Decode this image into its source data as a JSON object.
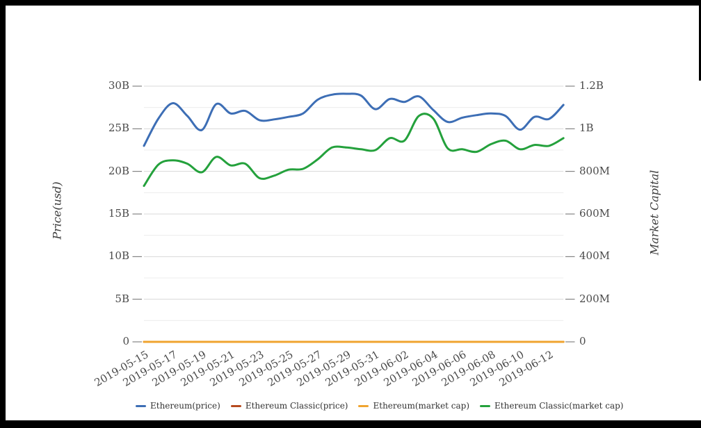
{
  "chart": {
    "title": "",
    "left_axis": {
      "title": "Price(usd)",
      "tick_labels_top_to_bottom": [
        "30B",
        "25B",
        "20B",
        "15B",
        "10B",
        "5B",
        "0"
      ],
      "max_billions": 30,
      "min": 0
    },
    "right_axis": {
      "title": "Market Capital",
      "tick_labels_top_to_bottom": [
        "1.2B",
        "1B",
        "800M",
        "600M",
        "400M",
        "200M",
        "0"
      ],
      "max_millions": 1200,
      "min": 0
    },
    "x_axis": {
      "tick_labels": [
        "2019-05-15",
        "2019-05-17",
        "2019-05-19",
        "2019-05-21",
        "2019-05-23",
        "2019-05-25",
        "2019-05-27",
        "2019-05-29",
        "2019-05-31",
        "2019-06-02",
        "2019-06-04",
        "2019-06-06",
        "2019-06-08",
        "2019-06-10",
        "2019-06-12"
      ]
    },
    "legend": [
      {
        "label": "Ethereum(price)",
        "color": "#3d6eb5"
      },
      {
        "label": "Ethereum Classic(price)",
        "color": "#b64a1e"
      },
      {
        "label": "Ethereum(market cap)",
        "color": "#f0a42f"
      },
      {
        "label": "Ethereum Classic(market cap)",
        "color": "#24a13c"
      }
    ],
    "colors": {
      "grid_major": "#d8d8d8",
      "grid_minor": "#ececec",
      "tick_mark": "#6b6b6b",
      "tick_text": "#4a4a4a"
    }
  },
  "chart_data": {
    "type": "line",
    "smooth": true,
    "grid": true,
    "legend_position": "bottom",
    "x": [
      "2019-05-15",
      "2019-05-16",
      "2019-05-17",
      "2019-05-18",
      "2019-05-19",
      "2019-05-20",
      "2019-05-21",
      "2019-05-22",
      "2019-05-23",
      "2019-05-24",
      "2019-05-25",
      "2019-05-26",
      "2019-05-27",
      "2019-05-28",
      "2019-05-29",
      "2019-05-30",
      "2019-05-31",
      "2019-06-01",
      "2019-06-02",
      "2019-06-03",
      "2019-06-04",
      "2019-06-05",
      "2019-06-06",
      "2019-06-07",
      "2019-06-08",
      "2019-06-09",
      "2019-06-10",
      "2019-06-11",
      "2019-06-12",
      "2019-06-13"
    ],
    "left_axis_range_billions": [
      0,
      30
    ],
    "right_axis_range_millions": [
      0,
      1200
    ],
    "series": [
      {
        "name": "Ethereum(price)",
        "color": "#3d6eb5",
        "axis": "left",
        "unit": "billions_usd",
        "values": [
          23.0,
          26.2,
          28.0,
          26.5,
          24.85,
          27.9,
          26.8,
          27.1,
          26.0,
          26.1,
          26.4,
          26.8,
          28.4,
          29.0,
          29.1,
          28.9,
          27.3,
          28.5,
          28.15,
          28.8,
          27.2,
          25.8,
          26.3,
          26.6,
          26.8,
          26.5,
          24.9,
          26.4,
          26.15,
          27.8
        ]
      },
      {
        "name": "Ethereum Classic(price)",
        "color": "#b64a1e",
        "axis": "left",
        "unit": "billions_usd",
        "values": [
          0,
          0,
          0,
          0,
          0,
          0,
          0,
          0,
          0,
          0,
          0,
          0,
          0,
          0,
          0,
          0,
          0,
          0,
          0,
          0,
          0,
          0,
          0,
          0,
          0,
          0,
          0,
          0,
          0,
          0
        ]
      },
      {
        "name": "Ethereum(market cap)",
        "color": "#f0a42f",
        "axis": "left",
        "unit": "billions_usd",
        "values": [
          0,
          0,
          0,
          0,
          0,
          0,
          0,
          0,
          0,
          0,
          0,
          0,
          0,
          0,
          0,
          0,
          0,
          0,
          0,
          0,
          0,
          0,
          0,
          0,
          0,
          0,
          0,
          0,
          0,
          0
        ]
      },
      {
        "name": "Ethereum Classic(market cap)",
        "color": "#24a13c",
        "axis": "right",
        "unit": "millions_usd",
        "values": [
          732,
          832,
          852,
          836,
          796,
          868,
          828,
          836,
          768,
          780,
          808,
          812,
          856,
          912,
          912,
          904,
          900,
          956,
          944,
          1060,
          1048,
          908,
          904,
          892,
          928,
          944,
          904,
          924,
          920,
          956
        ]
      }
    ]
  }
}
